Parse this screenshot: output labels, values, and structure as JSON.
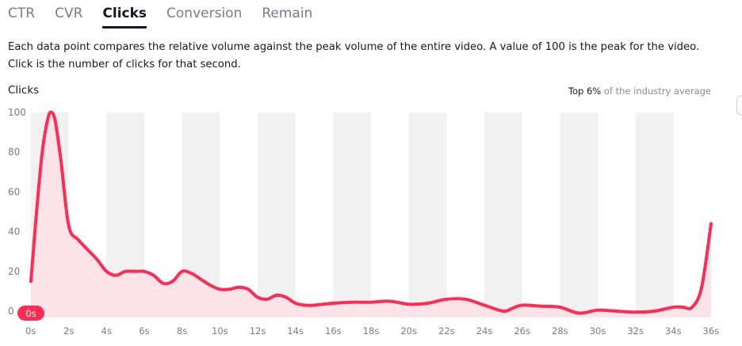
{
  "tabs": [
    {
      "label": "CTR",
      "active": false
    },
    {
      "label": "CVR",
      "active": false
    },
    {
      "label": "Clicks",
      "active": true
    },
    {
      "label": "Conversion",
      "active": false
    },
    {
      "label": "Remain",
      "active": false
    }
  ],
  "description": "Each data point compares the relative volume against the peak volume of the entire video. A value of 100 is the peak for the video. Click is the number of clicks for that second.",
  "chart_title": "Clicks",
  "industry": {
    "top_label": "Top 6%",
    "rest": " of the industry average"
  },
  "current_marker": "0s",
  "colors": {
    "line": "#fe2c55",
    "fill": "#fde4e9",
    "band": "#f1f1f2",
    "marker": "#fe2c55"
  },
  "chart_data": {
    "type": "area",
    "title": "Clicks",
    "xlabel": "",
    "ylabel": "",
    "ylim": [
      0,
      100
    ],
    "xlim": [
      0,
      36
    ],
    "y_ticks": [
      "0",
      "20",
      "40",
      "60",
      "80",
      "100"
    ],
    "x_ticks": [
      "0s",
      "2s",
      "4s",
      "6s",
      "8s",
      "10s",
      "12s",
      "14s",
      "16s",
      "18s",
      "20s",
      "22s",
      "24s",
      "26s",
      "28s",
      "30s",
      "32s",
      "34s",
      "36s"
    ],
    "series": [
      {
        "x": [
          0,
          0.3,
          0.6,
          0.9,
          1.1,
          1.3,
          1.6,
          2.0,
          2.5,
          3.0,
          3.5,
          4.0,
          4.5,
          5.0,
          5.5,
          6.0,
          6.5,
          7.0,
          7.5,
          8.0,
          8.5,
          9.0,
          9.5,
          10.0,
          10.5,
          11.0,
          11.5,
          12.0,
          12.5,
          13.0,
          13.5,
          14.0,
          14.5,
          15.0,
          16.0,
          17.0,
          18.0,
          19.0,
          20.0,
          21.0,
          22.0,
          23.0,
          24.0,
          25.0,
          25.5,
          26.0,
          27.0,
          28.0,
          29.0,
          30.0,
          31.0,
          32.0,
          33.0,
          34.0,
          34.5,
          35.0,
          35.5,
          36.0
        ],
        "y": [
          15,
          50,
          80,
          97,
          100,
          95,
          75,
          43,
          36,
          31,
          26,
          20,
          18,
          20,
          20,
          20,
          18,
          14,
          15,
          20,
          19,
          16,
          13,
          11,
          11,
          12,
          11,
          7,
          6,
          8,
          7,
          4,
          3,
          3,
          4,
          4.5,
          4.5,
          5,
          3.5,
          4,
          6,
          6,
          3,
          0,
          1.5,
          3,
          2.5,
          2,
          -1,
          0.5,
          0,
          -0.5,
          0,
          2,
          2,
          2,
          12,
          44
        ]
      }
    ]
  }
}
